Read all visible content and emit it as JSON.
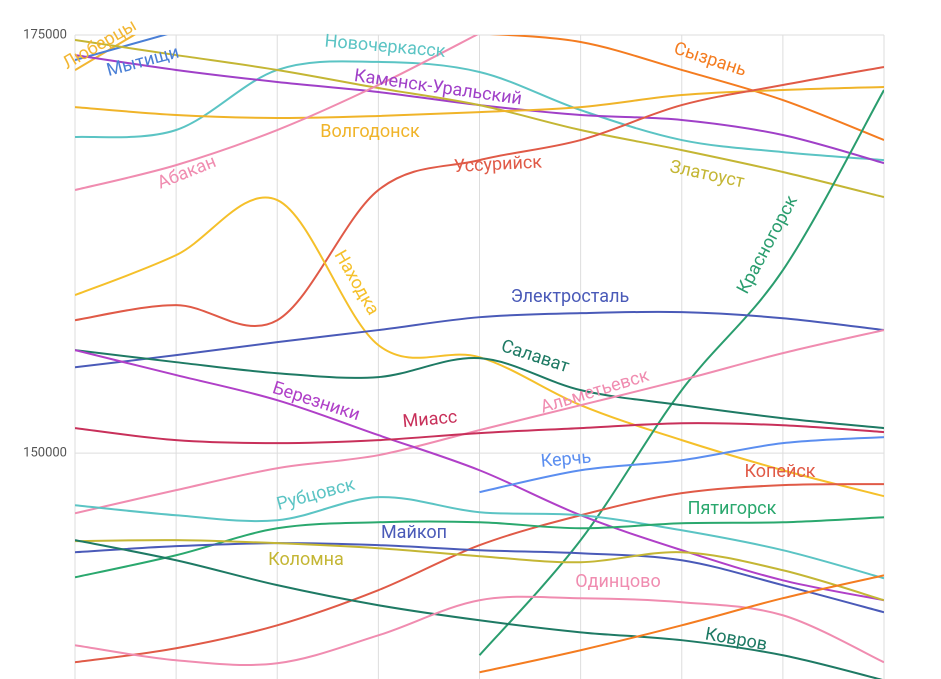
{
  "chart_data": {
    "type": "line",
    "categories": [
      null,
      null,
      null,
      null,
      null,
      null,
      null,
      null,
      null
    ],
    "ylim": [
      136500,
      175000
    ],
    "yticks": [
      150000,
      175000
    ],
    "grid": true,
    "series": [
      {
        "name": "Люберцы",
        "color": "#f2b632",
        "values": [
          172900,
          176500,
          null,
          null,
          null,
          null,
          null,
          null,
          null
        ]
      },
      {
        "name": "Мытищи",
        "color": "#4a7fd6",
        "values": [
          173500,
          175200,
          null,
          null,
          null,
          null,
          null,
          null,
          null
        ]
      },
      {
        "name": "Новочеркасск",
        "color": "#5bc4c4",
        "values": [
          168900,
          169320,
          172910,
          173390,
          172790,
          170510,
          168720,
          168000,
          167520
        ]
      },
      {
        "name": "Сызрань",
        "color": "#f47c20",
        "values": [
          null,
          null,
          null,
          null,
          175100,
          174580,
          172910,
          171110,
          168720
        ]
      },
      {
        "name": "Каменск-Уральский",
        "color": "#a040c8",
        "values": [
          173800,
          172910,
          172190,
          171590,
          170810,
          170220,
          169920,
          169020,
          167340
        ]
      },
      {
        "name": "Златоуст",
        "color": "#c4b634",
        "values": [
          174700,
          173800,
          172910,
          171830,
          170810,
          169320,
          168120,
          166810,
          165310
        ]
      },
      {
        "name": "Волгодонск",
        "color": "#f0b429",
        "values": [
          170690,
          170220,
          170040,
          170160,
          170390,
          170690,
          171410,
          171710,
          171890
        ]
      },
      {
        "name": "Абакан",
        "color": "#f08cb0",
        "values": [
          165730,
          167220,
          169320,
          172010,
          175100,
          null,
          null,
          null,
          null
        ]
      },
      {
        "name": "Уссурийск",
        "color": "#e05a47",
        "values": [
          157950,
          158850,
          157950,
          165730,
          167520,
          168720,
          170810,
          172010,
          173090
        ]
      },
      {
        "name": "Находка",
        "color": "#f5c02a",
        "values": [
          159450,
          161840,
          165130,
          156460,
          155740,
          152870,
          150780,
          148980,
          147430
        ]
      },
      {
        "name": "Красногорск",
        "color": "#2a9d6e",
        "values": [
          null,
          null,
          null,
          null,
          137920,
          144800,
          153770,
          160940,
          171710
        ]
      },
      {
        "name": "Электросталь",
        "color": "#4a5ab8",
        "values": [
          155140,
          155860,
          156640,
          157360,
          158130,
          158370,
          158430,
          158070,
          157360
        ]
      },
      {
        "name": "Салават",
        "color": "#1e7a64",
        "values": [
          156160,
          155440,
          154780,
          154550,
          155680,
          153770,
          152870,
          152090,
          151500
        ]
      },
      {
        "name": "Альметьевск",
        "color": "#f08cb0",
        "values": [
          146410,
          147790,
          149100,
          149880,
          151380,
          152870,
          154370,
          155980,
          157360
        ]
      },
      {
        "name": "Березники",
        "color": "#b040c8",
        "values": [
          156160,
          154670,
          153170,
          151080,
          148980,
          146290,
          144200,
          142400,
          141210
        ]
      },
      {
        "name": "Миасс",
        "color": "#c8305a",
        "values": [
          151500,
          150780,
          150600,
          150780,
          151200,
          151500,
          151790,
          151670,
          151260
        ]
      },
      {
        "name": "Керчь",
        "color": "#5b8ef0",
        "values": [
          null,
          null,
          null,
          null,
          147670,
          148980,
          149580,
          150600,
          150960
        ]
      },
      {
        "name": "Копейск",
        "color": "#e05a47",
        "values": [
          137500,
          138340,
          139710,
          141810,
          144500,
          146290,
          147610,
          148090,
          148150
        ]
      },
      {
        "name": "Рубцовск",
        "color": "#5bc4c4",
        "values": [
          146890,
          146290,
          145990,
          147370,
          146470,
          146290,
          145390,
          144200,
          142520
        ]
      },
      {
        "name": "Пятигорск",
        "color": "#2aa86e",
        "values": [
          142580,
          143900,
          145510,
          145870,
          145870,
          145510,
          145810,
          145870,
          146170
        ]
      },
      {
        "name": "Майкоп",
        "color": "#4a5ab8",
        "values": [
          144080,
          144440,
          144620,
          144500,
          144200,
          144020,
          143600,
          142110,
          140490
        ]
      },
      {
        "name": "Коломна",
        "color": "#c4b634",
        "values": [
          144740,
          144800,
          144620,
          144320,
          143840,
          143480,
          144080,
          143000,
          141210
        ]
      },
      {
        "name": "Ковров",
        "color": "#1e7a64",
        "values": [
          144800,
          143600,
          142110,
          140910,
          140010,
          139290,
          138820,
          137920,
          136420
        ]
      },
      {
        "name": "Одинцово",
        "color": "#f08cb0",
        "values": [
          138520,
          137620,
          137440,
          139110,
          141210,
          141330,
          141090,
          140310,
          137500
        ]
      },
      {
        "color": "#f47c20",
        "values": [
          null,
          null,
          null,
          null,
          136900,
          138220,
          139710,
          141330,
          142700
        ]
      }
    ]
  }
}
